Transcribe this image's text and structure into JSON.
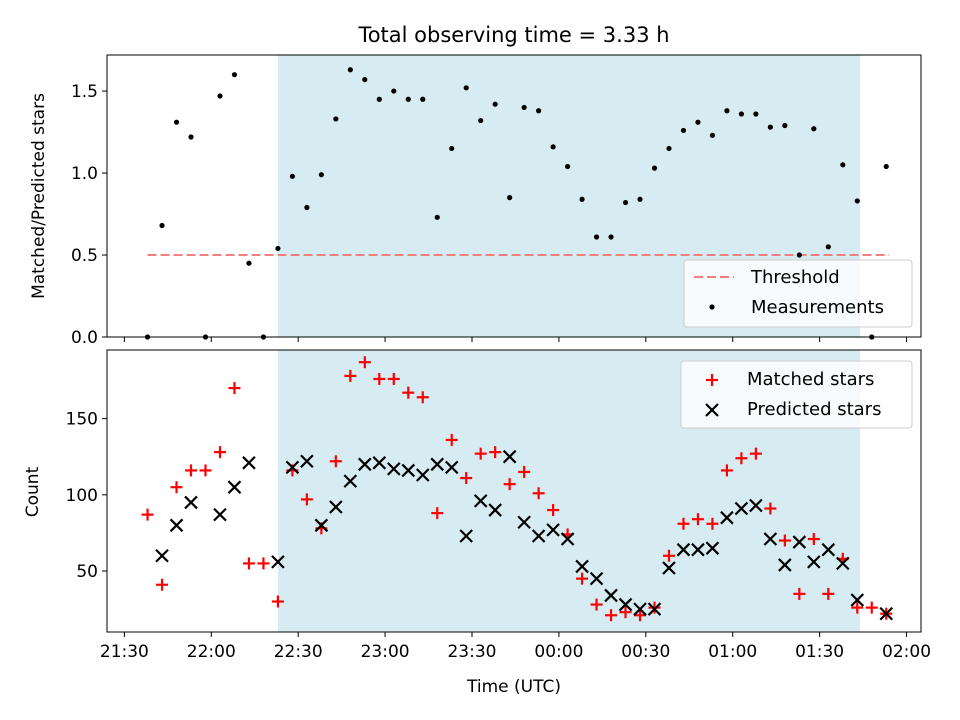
{
  "figure_title": "Total observing time = 3.33 h",
  "chart_data": [
    {
      "type": "scatter",
      "title": "Total observing time = 3.33 h",
      "xlabel": "",
      "ylabel": "Matched/Predicted stars",
      "ylim": [
        0,
        1.72
      ],
      "xlim": [
        "21:24",
        "02:05"
      ],
      "yticks": [
        0.0,
        0.5,
        1.0,
        1.5
      ],
      "ytick_labels": [
        "0.0",
        "0.5",
        "1.0",
        "1.5"
      ],
      "shaded_span": {
        "start": "22:23",
        "end": "01:44",
        "color": "#add8e6"
      },
      "threshold_line": {
        "label": "Threshold",
        "value": 0.5,
        "x_start": "21:38",
        "x_end": "01:54",
        "color": "#f08080"
      },
      "legend": {
        "placement": "lower-right",
        "entries": [
          "Threshold",
          "Measurements"
        ]
      },
      "series": [
        {
          "name": "Measurements",
          "color": "#000000",
          "marker": "dot",
          "x": [
            "21:38",
            "21:43",
            "21:48",
            "21:53",
            "21:58",
            "22:03",
            "22:08",
            "22:13",
            "22:18",
            "22:23",
            "22:28",
            "22:33",
            "22:38",
            "22:43",
            "22:48",
            "22:53",
            "22:58",
            "23:03",
            "23:08",
            "23:13",
            "23:18",
            "23:23",
            "23:28",
            "23:33",
            "23:38",
            "23:43",
            "23:48",
            "23:53",
            "23:58",
            "00:03",
            "00:08",
            "00:13",
            "00:18",
            "00:23",
            "00:28",
            "00:33",
            "00:38",
            "00:43",
            "00:48",
            "00:53",
            "00:58",
            "01:03",
            "01:08",
            "01:13",
            "01:18",
            "01:23",
            "01:28",
            "01:33",
            "01:38",
            "01:43",
            "01:48",
            "01:53"
          ],
          "y": [
            0.0,
            0.68,
            1.31,
            1.22,
            0.0,
            1.47,
            1.6,
            0.45,
            0.0,
            0.54,
            0.98,
            0.79,
            0.99,
            1.33,
            1.63,
            1.57,
            1.45,
            1.5,
            1.45,
            1.45,
            0.73,
            1.15,
            1.52,
            1.32,
            1.42,
            0.85,
            1.4,
            1.38,
            1.16,
            1.04,
            0.84,
            0.61,
            0.61,
            0.82,
            0.84,
            1.03,
            1.15,
            1.26,
            1.31,
            1.23,
            1.38,
            1.36,
            1.36,
            1.28,
            1.29,
            0.5,
            1.27,
            0.55,
            1.05,
            0.83,
            0.0,
            1.04
          ]
        }
      ]
    },
    {
      "type": "scatter",
      "xlabel": "Time (UTC)",
      "ylabel": "Count",
      "ylim": [
        10,
        195
      ],
      "xlim": [
        "21:24",
        "02:05"
      ],
      "xtick_labels": [
        "21:30",
        "22:00",
        "22:30",
        "23:00",
        "23:30",
        "00:00",
        "00:30",
        "01:00",
        "01:30",
        "02:00"
      ],
      "yticks": [
        50,
        100,
        150
      ],
      "ytick_labels": [
        "50",
        "100",
        "150"
      ],
      "shaded_span": {
        "start": "22:23",
        "end": "01:44",
        "color": "#add8e6"
      },
      "legend": {
        "placement": "top-right",
        "entries": [
          "Matched stars",
          "Predicted stars"
        ]
      },
      "series": [
        {
          "name": "Matched stars",
          "color": "#ff0000",
          "marker": "plus",
          "x": [
            "21:38",
            "21:43",
            "21:48",
            "21:53",
            "21:58",
            "22:03",
            "22:08",
            "22:13",
            "22:18",
            "22:23",
            "22:28",
            "22:33",
            "22:38",
            "22:43",
            "22:48",
            "22:53",
            "22:58",
            "23:03",
            "23:08",
            "23:13",
            "23:18",
            "23:23",
            "23:28",
            "23:33",
            "23:38",
            "23:43",
            "23:48",
            "23:53",
            "23:58",
            "00:03",
            "00:08",
            "00:13",
            "00:18",
            "00:23",
            "00:28",
            "00:33",
            "00:38",
            "00:43",
            "00:48",
            "00:53",
            "00:58",
            "01:03",
            "01:08",
            "01:13",
            "01:18",
            "01:23",
            "01:28",
            "01:33",
            "01:38",
            "01:43",
            "01:48",
            "01:53"
          ],
          "y": [
            87,
            41,
            105,
            116,
            116,
            128,
            170,
            55,
            55,
            30,
            116,
            97,
            78,
            122,
            178,
            187,
            176,
            176,
            167,
            164,
            88,
            136,
            111,
            127,
            128,
            107,
            115,
            101,
            90,
            74,
            45,
            28,
            21,
            23,
            21,
            26,
            60,
            81,
            84,
            81,
            116,
            124,
            127,
            91,
            70,
            35,
            71,
            35,
            58,
            26,
            26,
            22
          ]
        },
        {
          "name": "Predicted stars",
          "color": "#000000",
          "marker": "x",
          "x": [
            "21:43",
            "21:48",
            "21:53",
            "22:03",
            "22:08",
            "22:13",
            "22:23",
            "22:28",
            "22:33",
            "22:38",
            "22:43",
            "22:48",
            "22:53",
            "22:58",
            "23:03",
            "23:08",
            "23:13",
            "23:18",
            "23:23",
            "23:28",
            "23:33",
            "23:38",
            "23:43",
            "23:48",
            "23:53",
            "23:58",
            "00:03",
            "00:08",
            "00:13",
            "00:18",
            "00:23",
            "00:28",
            "00:33",
            "00:38",
            "00:43",
            "00:48",
            "00:53",
            "00:58",
            "01:03",
            "01:08",
            "01:13",
            "01:18",
            "01:23",
            "01:28",
            "01:33",
            "01:38",
            "01:43",
            "01:53"
          ],
          "y": [
            60,
            80,
            95,
            87,
            105,
            121,
            56,
            118,
            122,
            80,
            92,
            109,
            120,
            121,
            117,
            116,
            113,
            120,
            118,
            73,
            96,
            90,
            125,
            82,
            73,
            77,
            71,
            53,
            45,
            34,
            28,
            25,
            25,
            52,
            64,
            64,
            65,
            85,
            91,
            93,
            71,
            54,
            69,
            56,
            64,
            55,
            31,
            22
          ]
        }
      ]
    }
  ]
}
